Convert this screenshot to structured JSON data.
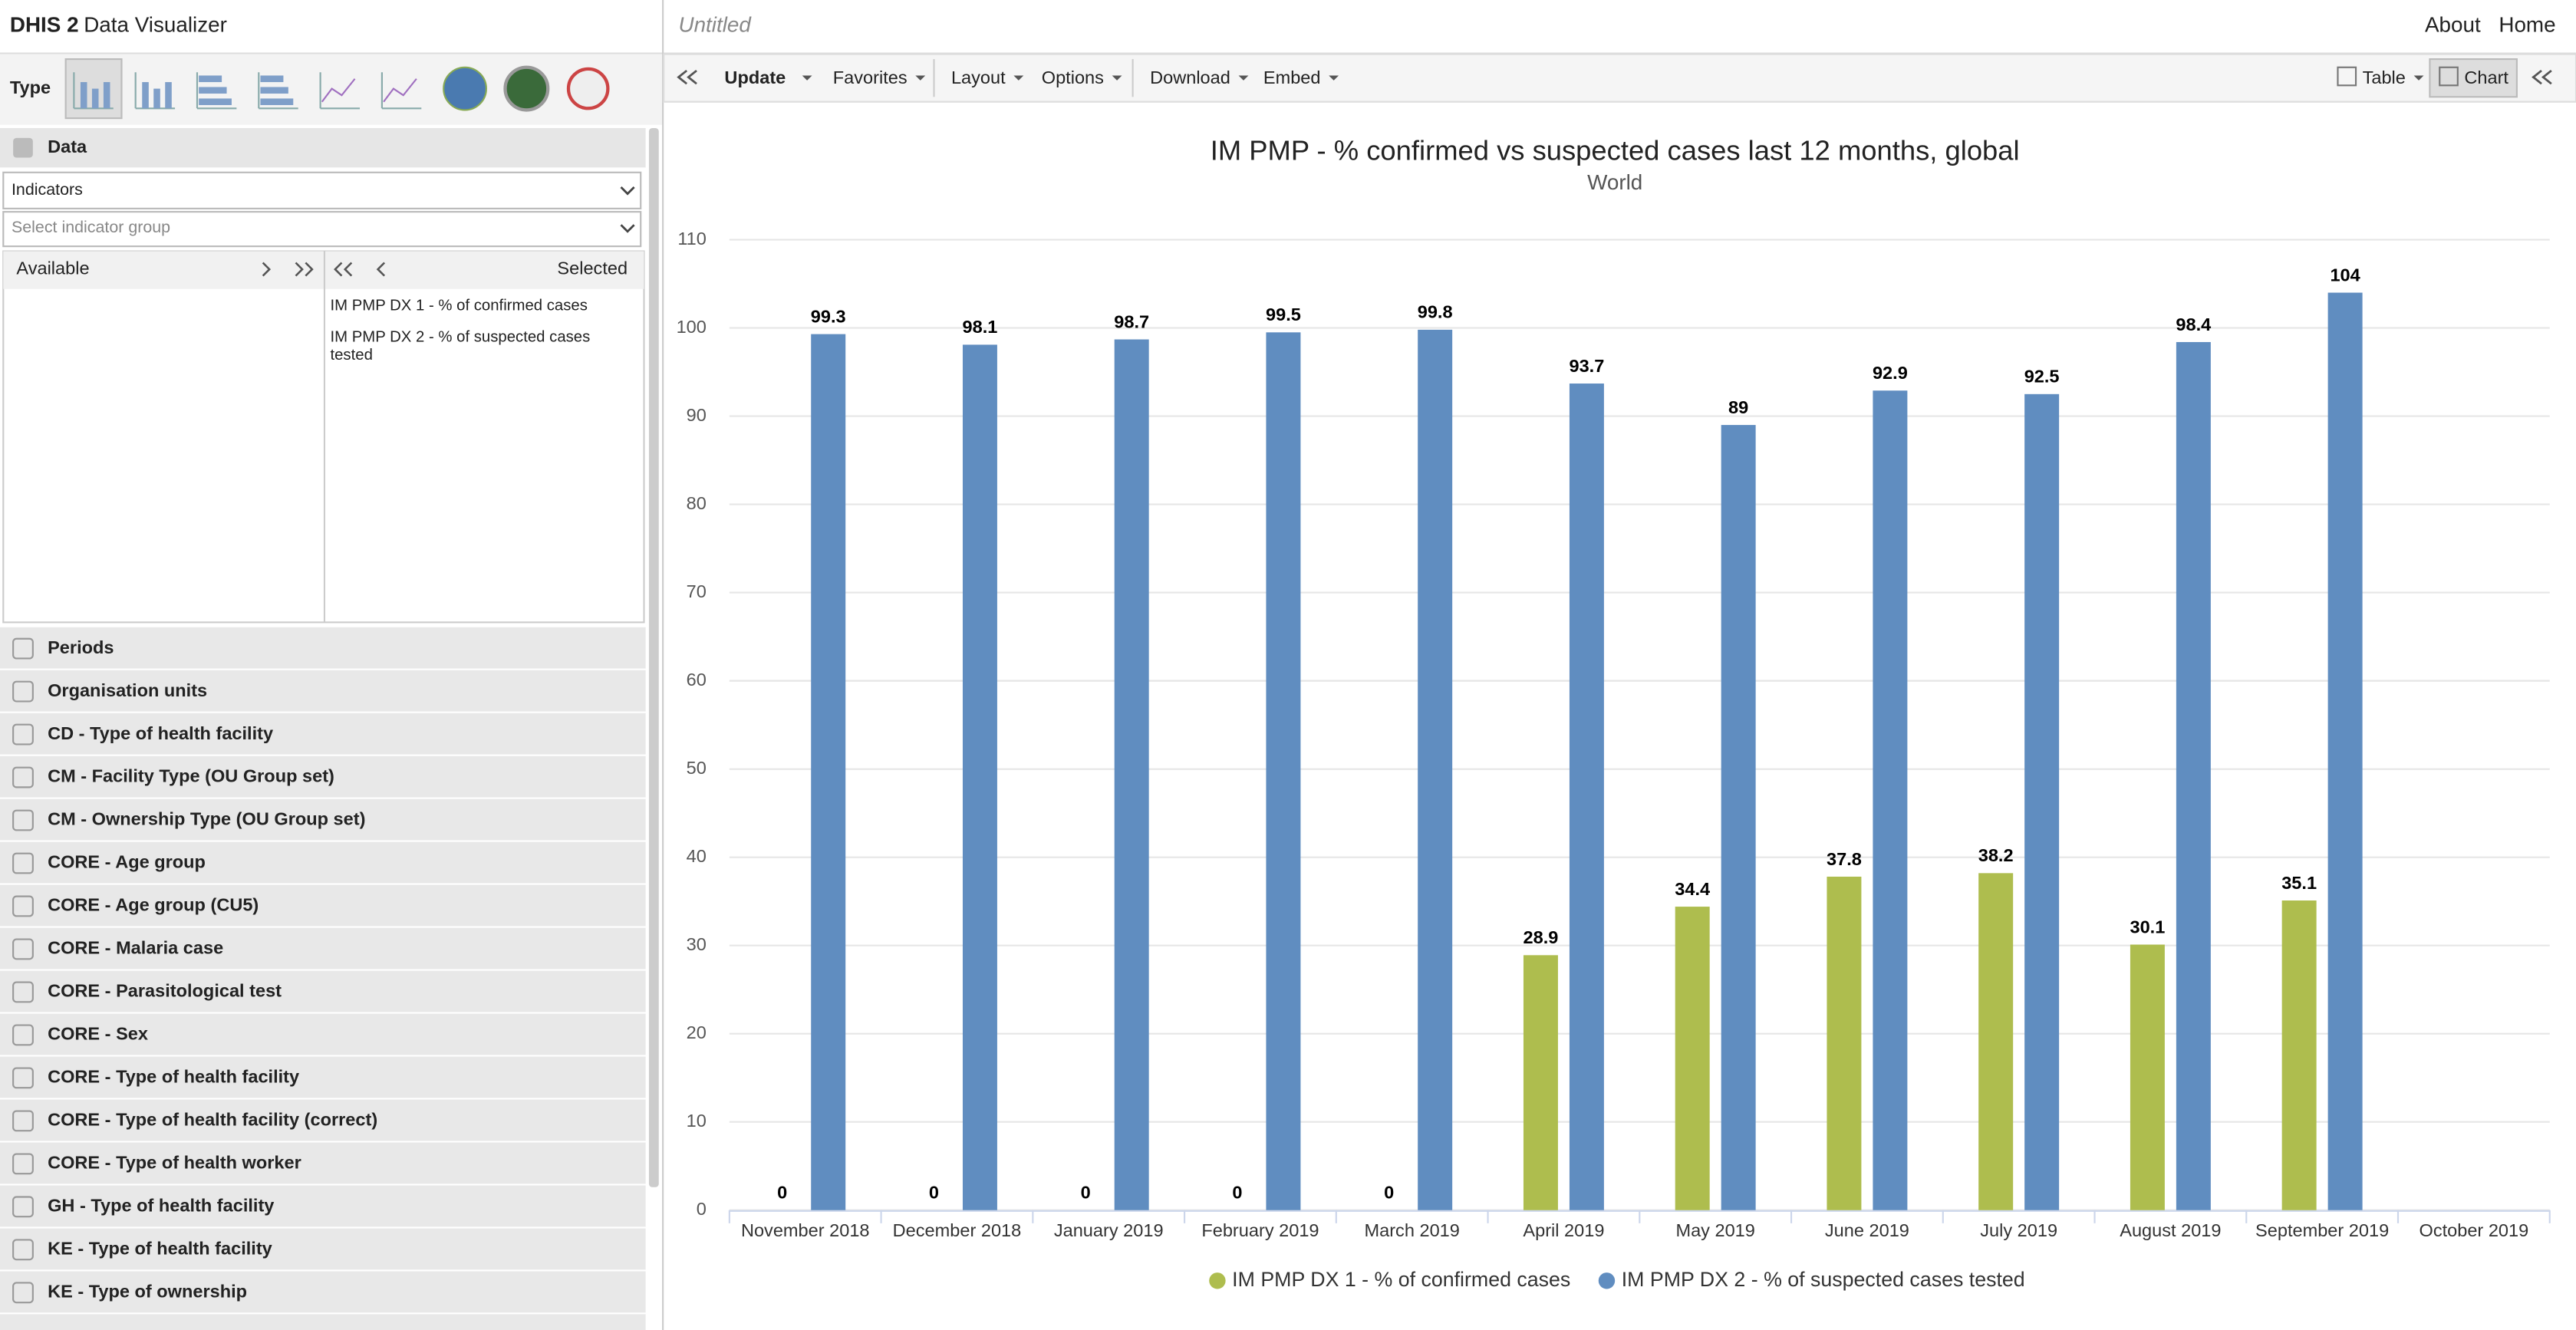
{
  "header": {
    "brand": "DHIS 2",
    "app": "Data Visualizer",
    "title": "Untitled",
    "links": [
      "About",
      "Home"
    ]
  },
  "toolbar": {
    "type_label": "Type",
    "buttons": [
      "Update",
      "Favorites",
      "Layout",
      "Options",
      "Download",
      "Embed"
    ],
    "views": [
      "Table",
      "Chart"
    ]
  },
  "data_panel": {
    "heading": "Data",
    "dimension": "Indicators",
    "group_placeholder": "Select indicator group",
    "available": "Available",
    "selected": "Selected",
    "selected_items": [
      "IM PMP DX 1 - % of confirmed cases",
      "IM PMP DX 2 - % of suspected cases tested"
    ]
  },
  "sections": [
    "Periods",
    "Organisation units",
    "CD - Type of health facility",
    "CM - Facility Type (OU Group set)",
    "CM - Ownership Type (OU Group set)",
    "CORE - Age group",
    "CORE - Age group (CU5)",
    "CORE - Malaria case",
    "CORE - Parasitological test",
    "CORE - Sex",
    "CORE - Type of health facility",
    "CORE - Type of health facility (correct)",
    "CORE - Type of health worker",
    "GH - Type of health facility",
    "KE - Type of health facility",
    "KE - Type of ownership"
  ],
  "chart_data": {
    "type": "bar",
    "title": "IM PMP - % confirmed vs suspected cases last 12 months, global",
    "subtitle": "World",
    "categories": [
      "November 2018",
      "December 2018",
      "January 2019",
      "February 2019",
      "March 2019",
      "April 2019",
      "May 2019",
      "June 2019",
      "July 2019",
      "August 2019",
      "September 2019",
      "October 2019"
    ],
    "series": [
      {
        "name": "IM PMP DX 1 - % of confirmed cases",
        "color": "#aebd4e",
        "values": [
          0,
          0,
          0,
          0,
          0,
          28.9,
          34.4,
          37.8,
          38.2,
          30.1,
          35.1,
          null
        ]
      },
      {
        "name": "IM PMP DX 2 - % of suspected cases tested",
        "color": "#608dc0",
        "values": [
          99.3,
          98.1,
          98.7,
          99.5,
          99.8,
          93.7,
          89,
          92.9,
          92.5,
          98.4,
          104,
          null
        ]
      }
    ],
    "ylim": [
      0,
      110
    ],
    "yticks": [
      0,
      10,
      20,
      30,
      40,
      50,
      60,
      70,
      80,
      90,
      100,
      110
    ],
    "grid": true,
    "legend": "bottom"
  }
}
